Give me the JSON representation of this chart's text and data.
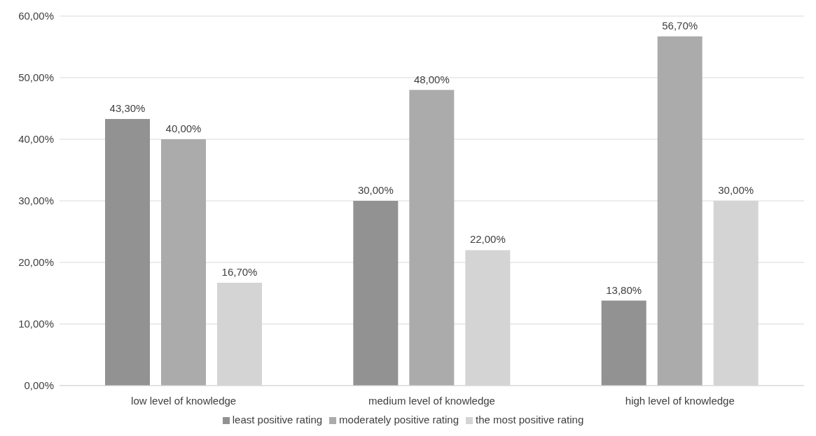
{
  "chart_data": {
    "type": "bar",
    "categories": [
      "low level of knowledge",
      "medium level of knowledge",
      "high level of knowledge"
    ],
    "series": [
      {
        "name": "least positive rating",
        "color": "#929292",
        "values": [
          43.3,
          30,
          13.8
        ],
        "value_labels": [
          "43,30%",
          "30,00%",
          "13,80%"
        ]
      },
      {
        "name": "moderately positive rating",
        "color": "#ababab",
        "values": [
          40,
          48,
          56.7
        ],
        "value_labels": [
          "40,00%",
          "48,00%",
          "56,70%"
        ]
      },
      {
        "name": "the most positive rating",
        "color": "#d4d4d4",
        "values": [
          16.7,
          22,
          30
        ],
        "value_labels": [
          "16,70%",
          "22,00%",
          "30,00%"
        ]
      }
    ],
    "ylim": [
      0,
      60
    ],
    "yticks": [
      {
        "value": 0,
        "label": "0,00%"
      },
      {
        "value": 10,
        "label": "10,00%"
      },
      {
        "value": 20,
        "label": "20,00%"
      },
      {
        "value": 30,
        "label": "30,00%"
      },
      {
        "value": 40,
        "label": "40,00%"
      },
      {
        "value": 50,
        "label": "50,00%"
      },
      {
        "value": 60,
        "label": "60,00%"
      }
    ],
    "grid": "y",
    "legend": "bottom"
  }
}
